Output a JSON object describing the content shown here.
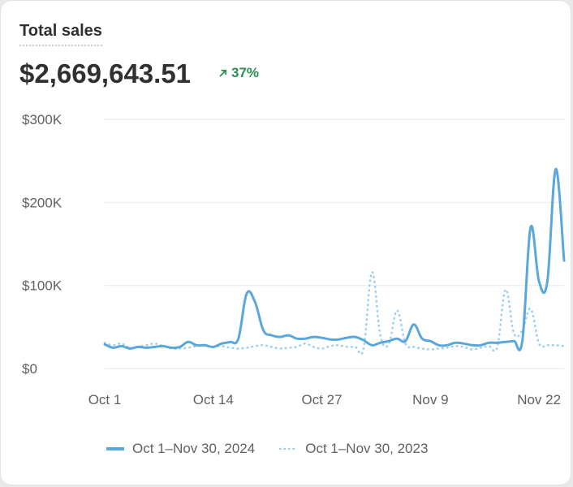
{
  "header": {
    "title": "Total sales",
    "total": "$2,669,643.51",
    "change": "37%",
    "change_icon": "arrow-up-right-icon"
  },
  "colors": {
    "current": "#5aa7dc",
    "previous": "#9ccfee",
    "positive": "#2f8c4f"
  },
  "chart_data": {
    "type": "line",
    "ylim": [
      0,
      300000
    ],
    "y_ticks": [
      {
        "value": 0,
        "label": "$0"
      },
      {
        "value": 100000,
        "label": "$100K"
      },
      {
        "value": 200000,
        "label": "$200K"
      },
      {
        "value": 300000,
        "label": "$300K"
      }
    ],
    "x_ticks": [
      {
        "index": 0,
        "label": "Oct 1"
      },
      {
        "index": 13,
        "label": "Oct 14"
      },
      {
        "index": 26,
        "label": "Oct 27"
      },
      {
        "index": 39,
        "label": "Nov 9"
      },
      {
        "index": 52,
        "label": "Nov 22"
      }
    ],
    "grid": true,
    "legend_position": "bottom",
    "series": [
      {
        "name": "Oct 1–Nov 30, 2024",
        "style": "solid",
        "values": [
          29000,
          25000,
          27000,
          24000,
          26000,
          25000,
          26000,
          27000,
          25000,
          26000,
          32000,
          28000,
          28000,
          26000,
          30000,
          32000,
          36000,
          90000,
          80000,
          46000,
          40000,
          38000,
          40000,
          36000,
          36000,
          38000,
          37000,
          35000,
          35000,
          37000,
          38000,
          34000,
          28000,
          31000,
          33000,
          36000,
          33000,
          53000,
          36000,
          33000,
          28000,
          28000,
          31000,
          30000,
          28000,
          28000,
          31000,
          31000,
          32000,
          33000,
          33000,
          170000,
          105000,
          105000,
          240000,
          130000
        ]
      },
      {
        "name": "Oct 1–Nov 30, 2023",
        "style": "dotted",
        "values": [
          31000,
          28000,
          30000,
          25000,
          26000,
          28000,
          30000,
          27000,
          24000,
          24000,
          25000,
          27000,
          28000,
          26000,
          27000,
          25000,
          24000,
          25000,
          27000,
          28000,
          26000,
          24000,
          25000,
          26000,
          30000,
          26000,
          24000,
          27000,
          28000,
          26000,
          26000,
          24000,
          116000,
          40000,
          29000,
          70000,
          30000,
          26000,
          24000,
          23000,
          24000,
          25000,
          27000,
          26000,
          23000,
          25000,
          27000,
          26000,
          95000,
          42000,
          46000,
          72000,
          30000,
          28000,
          28000,
          27000
        ]
      }
    ]
  }
}
